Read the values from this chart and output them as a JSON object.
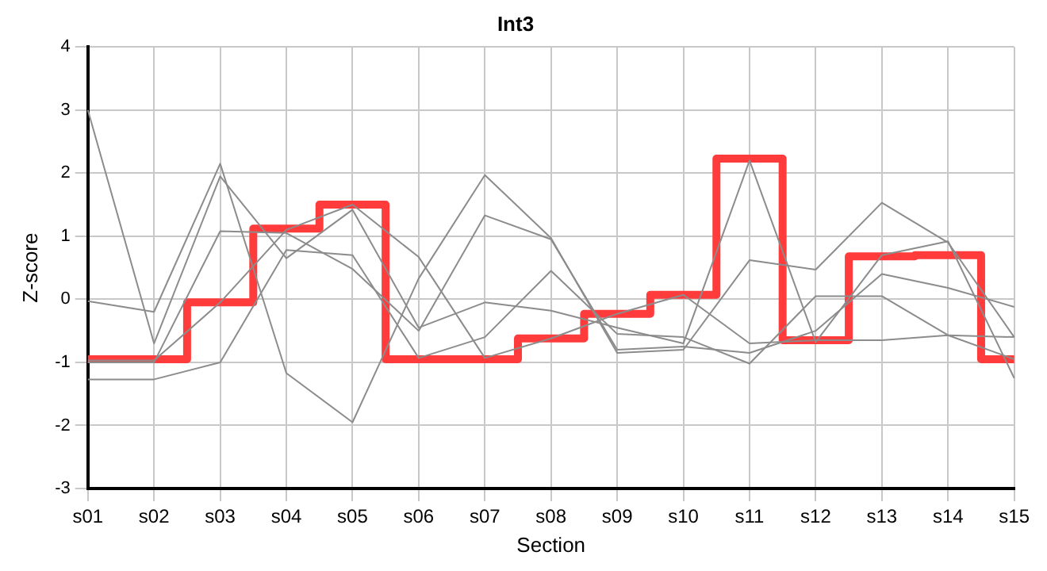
{
  "chart_data": {
    "type": "line",
    "title": "Int3",
    "xlabel": "Section",
    "ylabel": "Z-score",
    "categories": [
      "s01",
      "s02",
      "s03",
      "s04",
      "s05",
      "s06",
      "s07",
      "s08",
      "s09",
      "s10",
      "s11",
      "s12",
      "s13",
      "s14",
      "s15"
    ],
    "ylim": [
      -3,
      4
    ],
    "yticks": [
      -3,
      -2,
      -1,
      0,
      1,
      2,
      3,
      4
    ],
    "grid": true,
    "marker": "none",
    "series": [
      {
        "color": "#8c8c8c",
        "values": [
          3.0,
          -0.7,
          1.95,
          0.65,
          1.42,
          -0.45,
          -0.05,
          -0.18,
          -0.45,
          -0.7,
          2.2,
          -0.68,
          0.7,
          0.92,
          -1.25
        ]
      },
      {
        "color": "#8c8c8c",
        "values": [
          -0.03,
          -0.2,
          2.15,
          -1.17,
          -1.95,
          0.33,
          1.97,
          0.97,
          -0.85,
          -0.8,
          0.62,
          0.47,
          1.53,
          0.9,
          -0.6
        ]
      },
      {
        "color": "#8c8c8c",
        "values": [
          -1.0,
          -1.0,
          1.08,
          1.05,
          0.48,
          -0.5,
          1.33,
          0.95,
          -0.8,
          -0.75,
          -0.85,
          -0.5,
          0.4,
          0.18,
          -0.12
        ]
      },
      {
        "color": "#8c8c8c",
        "values": [
          -1.27,
          -1.27,
          -1.0,
          0.78,
          0.7,
          -0.93,
          -0.6,
          0.45,
          -0.55,
          -0.6,
          -1.02,
          0.05,
          0.05,
          -0.57,
          -0.95
        ]
      },
      {
        "color": "#8c8c8c",
        "values": [
          -0.97,
          -0.97,
          -0.05,
          1.1,
          1.5,
          0.67,
          -0.93,
          -0.62,
          -0.23,
          0.07,
          -0.7,
          -0.65,
          -0.65,
          -0.57,
          -0.6
        ]
      },
      {
        "type": "step",
        "color": "#ff3b3b",
        "values": [
          -0.95,
          -0.95,
          -0.05,
          1.12,
          1.5,
          -0.95,
          -0.95,
          -0.62,
          -0.23,
          0.07,
          2.23,
          -0.65,
          0.68,
          0.7,
          -0.95
        ]
      }
    ]
  }
}
